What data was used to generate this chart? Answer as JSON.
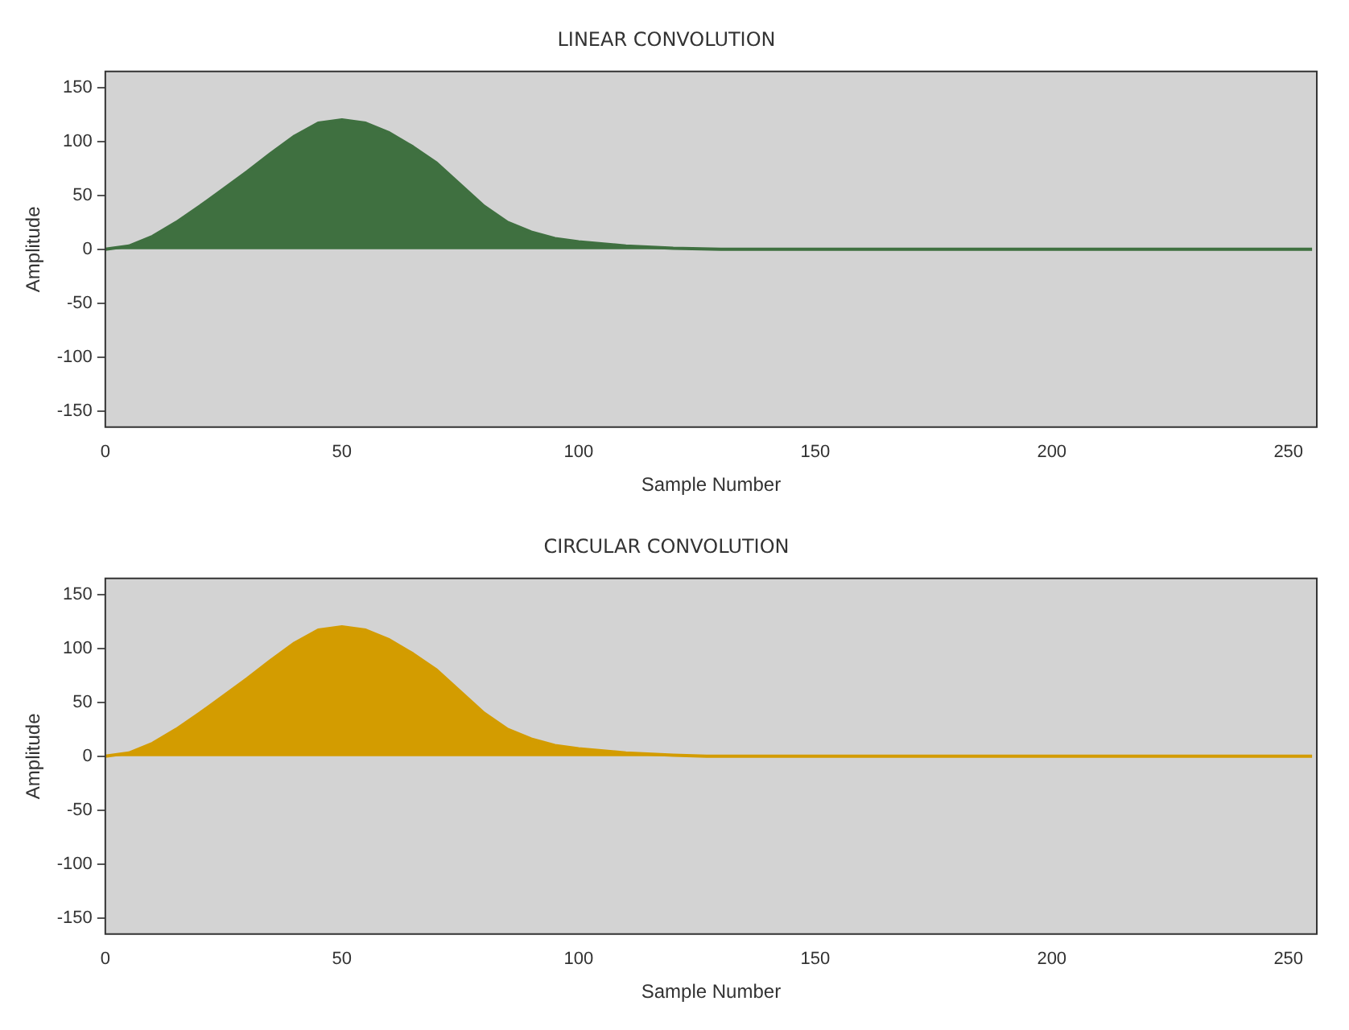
{
  "chart_data": [
    {
      "type": "area",
      "title": "LINEAR CONVOLUTION",
      "xlabel": "Sample Number",
      "ylabel": "Amplitude",
      "x": [
        0,
        5,
        10,
        15,
        20,
        25,
        30,
        35,
        40,
        45,
        50,
        55,
        60,
        65,
        70,
        75,
        80,
        85,
        90,
        95,
        100,
        110,
        120,
        130,
        255
      ],
      "series": [
        {
          "color": "#3f7040",
          "values": [
            0,
            3,
            12,
            25,
            40,
            56,
            72,
            89,
            105,
            117,
            120,
            117,
            108,
            95,
            80,
            60,
            40,
            25,
            16,
            10,
            7,
            3,
            1,
            0,
            0
          ]
        }
      ],
      "xlim": [
        0,
        256
      ],
      "xticks": [
        0,
        50,
        100,
        150,
        200,
        250
      ],
      "ylim": [
        -165,
        165
      ],
      "yticks": [
        -150,
        -100,
        -50,
        0,
        50,
        100,
        150
      ],
      "grid": false,
      "legend": false
    },
    {
      "type": "area",
      "title": "CIRCULAR CONVOLUTION",
      "xlabel": "Sample Number",
      "ylabel": "Amplitude",
      "x": [
        0,
        5,
        10,
        15,
        20,
        25,
        30,
        35,
        40,
        45,
        50,
        55,
        60,
        65,
        70,
        75,
        80,
        85,
        90,
        95,
        100,
        110,
        120,
        127,
        255
      ],
      "series": [
        {
          "color": "#d39c00",
          "values": [
            0,
            3,
            12,
            25,
            40,
            56,
            72,
            89,
            105,
            117,
            120,
            117,
            108,
            95,
            80,
            60,
            40,
            25,
            16,
            10,
            7,
            3,
            1,
            0,
            0
          ]
        }
      ],
      "xlim": [
        0,
        256
      ],
      "xticks": [
        0,
        50,
        100,
        150,
        200,
        250
      ],
      "ylim": [
        -165,
        165
      ],
      "yticks": [
        -150,
        -100,
        -50,
        0,
        50,
        100,
        150
      ],
      "grid": false,
      "legend": false
    }
  ]
}
